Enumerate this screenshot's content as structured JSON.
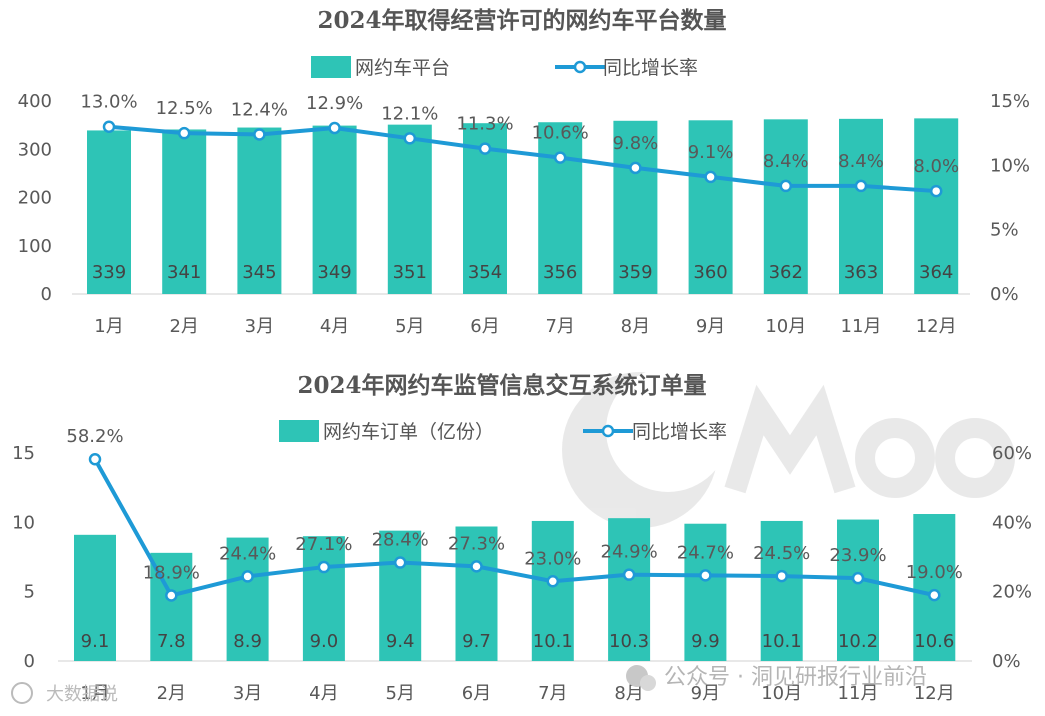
{
  "colors": {
    "bar": "#2ec4b6",
    "line": "#1e9ad6",
    "marker_fill": "#ffffff"
  },
  "chart_data": [
    {
      "type": "bar",
      "title": "2024年取得经营许可的网约车平台数量",
      "categories": [
        "1月",
        "2月",
        "3月",
        "4月",
        "5月",
        "6月",
        "7月",
        "8月",
        "9月",
        "10月",
        "11月",
        "12月"
      ],
      "series": [
        {
          "name": "网约车平台",
          "type": "bar",
          "axis": "left",
          "values": [
            339,
            341,
            345,
            349,
            351,
            354,
            356,
            359,
            360,
            362,
            363,
            364
          ],
          "labels": [
            "339",
            "341",
            "345",
            "349",
            "351",
            "354",
            "356",
            "359",
            "360",
            "362",
            "363",
            "364"
          ]
        },
        {
          "name": "同比增长率",
          "type": "line",
          "axis": "right",
          "values": [
            13.0,
            12.5,
            12.4,
            12.9,
            12.1,
            11.3,
            10.6,
            9.8,
            9.1,
            8.4,
            8.4,
            8.0
          ],
          "labels": [
            "13.0%",
            "12.5%",
            "12.4%",
            "12.9%",
            "12.1%",
            "11.3%",
            "10.6%",
            "9.8%",
            "9.1%",
            "8.4%",
            "8.4%",
            "8.0%"
          ]
        }
      ],
      "ylim_left": [
        0,
        400
      ],
      "yticks_left": [
        {
          "v": 0,
          "t": "0"
        },
        {
          "v": 100,
          "t": "100"
        },
        {
          "v": 200,
          "t": "200"
        },
        {
          "v": 300,
          "t": "300"
        },
        {
          "v": 400,
          "t": "400"
        }
      ],
      "ylim_right": [
        0,
        15
      ],
      "yticks_right": [
        {
          "v": 0,
          "t": "0%"
        },
        {
          "v": 5,
          "t": "5%"
        },
        {
          "v": 10,
          "t": "10%"
        },
        {
          "v": 15,
          "t": "15%"
        }
      ],
      "legend": "top-center",
      "grid": false
    },
    {
      "type": "bar",
      "title": "2024年网约车监管信息交互系统订单量",
      "categories": [
        "1月",
        "2月",
        "3月",
        "4月",
        "5月",
        "6月",
        "7月",
        "8月",
        "9月",
        "10月",
        "11月",
        "12月"
      ],
      "series": [
        {
          "name": "网约车订单（亿份）",
          "type": "bar",
          "axis": "left",
          "values": [
            9.1,
            7.8,
            8.9,
            9.0,
            9.4,
            9.7,
            10.1,
            10.3,
            9.9,
            10.1,
            10.2,
            10.6
          ],
          "labels": [
            "9.1",
            "7.8",
            "8.9",
            "9.0",
            "9.4",
            "9.7",
            "10.1",
            "10.3",
            "9.9",
            "10.1",
            "10.2",
            "10.6"
          ]
        },
        {
          "name": "同比增长率",
          "type": "line",
          "axis": "right",
          "values": [
            58.2,
            18.9,
            24.4,
            27.1,
            28.4,
            27.3,
            23.0,
            24.9,
            24.7,
            24.5,
            23.9,
            19.0
          ],
          "labels": [
            "58.2%",
            "18.9%",
            "24.4%",
            "27.1%",
            "28.4%",
            "27.3%",
            "23.0%",
            "24.9%",
            "24.7%",
            "24.5%",
            "23.9%",
            "19.0%"
          ]
        }
      ],
      "ylim_left": [
        0,
        15
      ],
      "yticks_left": [
        {
          "v": 0,
          "t": "0"
        },
        {
          "v": 5,
          "t": "5"
        },
        {
          "v": 10,
          "t": "10"
        },
        {
          "v": 15,
          "t": "15"
        }
      ],
      "ylim_right": [
        0,
        60
      ],
      "yticks_right": [
        {
          "v": 0,
          "t": "0%"
        },
        {
          "v": 20,
          "t": "20%"
        },
        {
          "v": 40,
          "t": "40%"
        },
        {
          "v": 60,
          "t": "60%"
        }
      ],
      "legend": "top-center",
      "grid": false
    }
  ],
  "watermarks": {
    "wechat": "公众号 · 洞见研报行业前沿",
    "weibo": "大数据说"
  }
}
